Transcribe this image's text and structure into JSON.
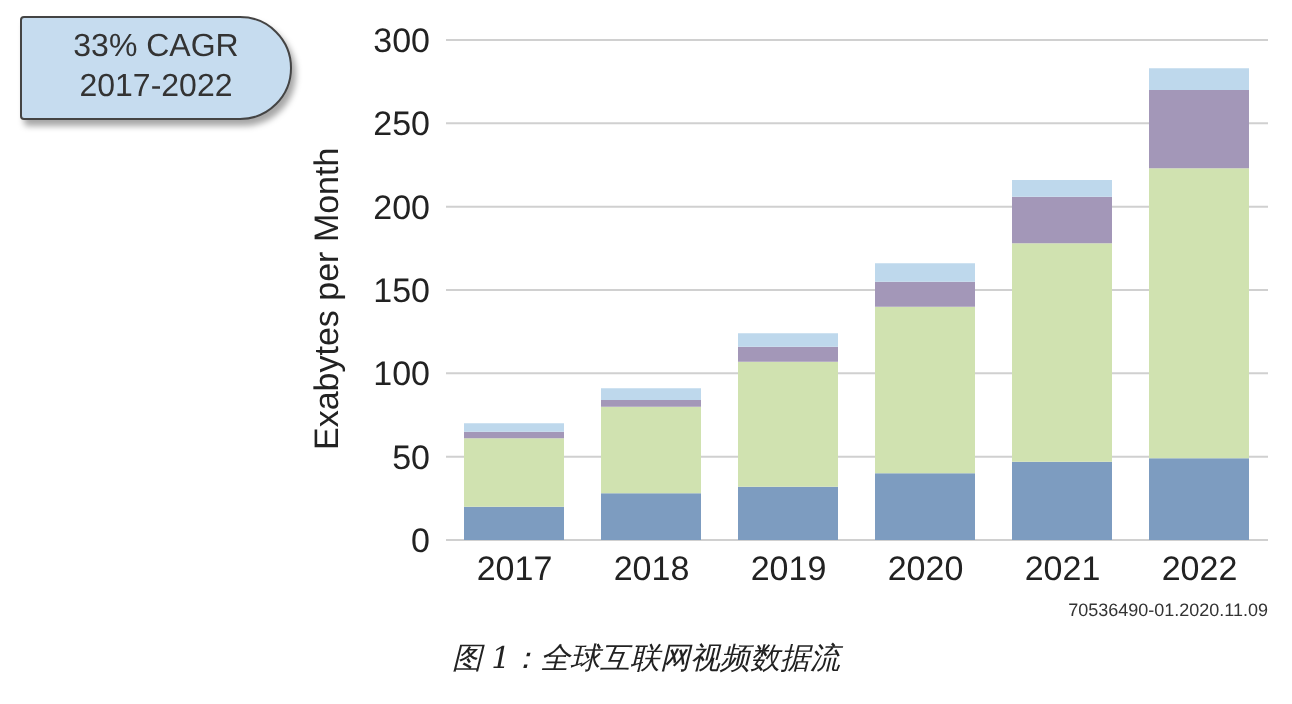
{
  "chart_data": {
    "type": "bar",
    "stacked": true,
    "ylabel": "Exabytes per Month",
    "categories": [
      "2017",
      "2018",
      "2019",
      "2020",
      "2021",
      "2022"
    ],
    "series": [
      {
        "color": "#7d9cc0",
        "values": [
          20,
          28,
          32,
          40,
          47,
          49
        ]
      },
      {
        "color": "#d0e2b0",
        "values": [
          41,
          52,
          75,
          100,
          131,
          174
        ]
      },
      {
        "color": "#a397b8",
        "values": [
          4,
          4,
          9,
          15,
          28,
          47
        ]
      },
      {
        "color": "#bed8ec",
        "values": [
          5,
          7,
          8,
          11,
          10,
          13
        ]
      }
    ],
    "ylim": [
      0,
      300
    ],
    "yticks": [
      0,
      50,
      100,
      150,
      200,
      250,
      300
    ],
    "grid": "y",
    "annotations": [
      "33% CAGR 2017-2022",
      "70536490-01.2020.11.09",
      "图 1：全球互联网视频数据流"
    ]
  }
}
